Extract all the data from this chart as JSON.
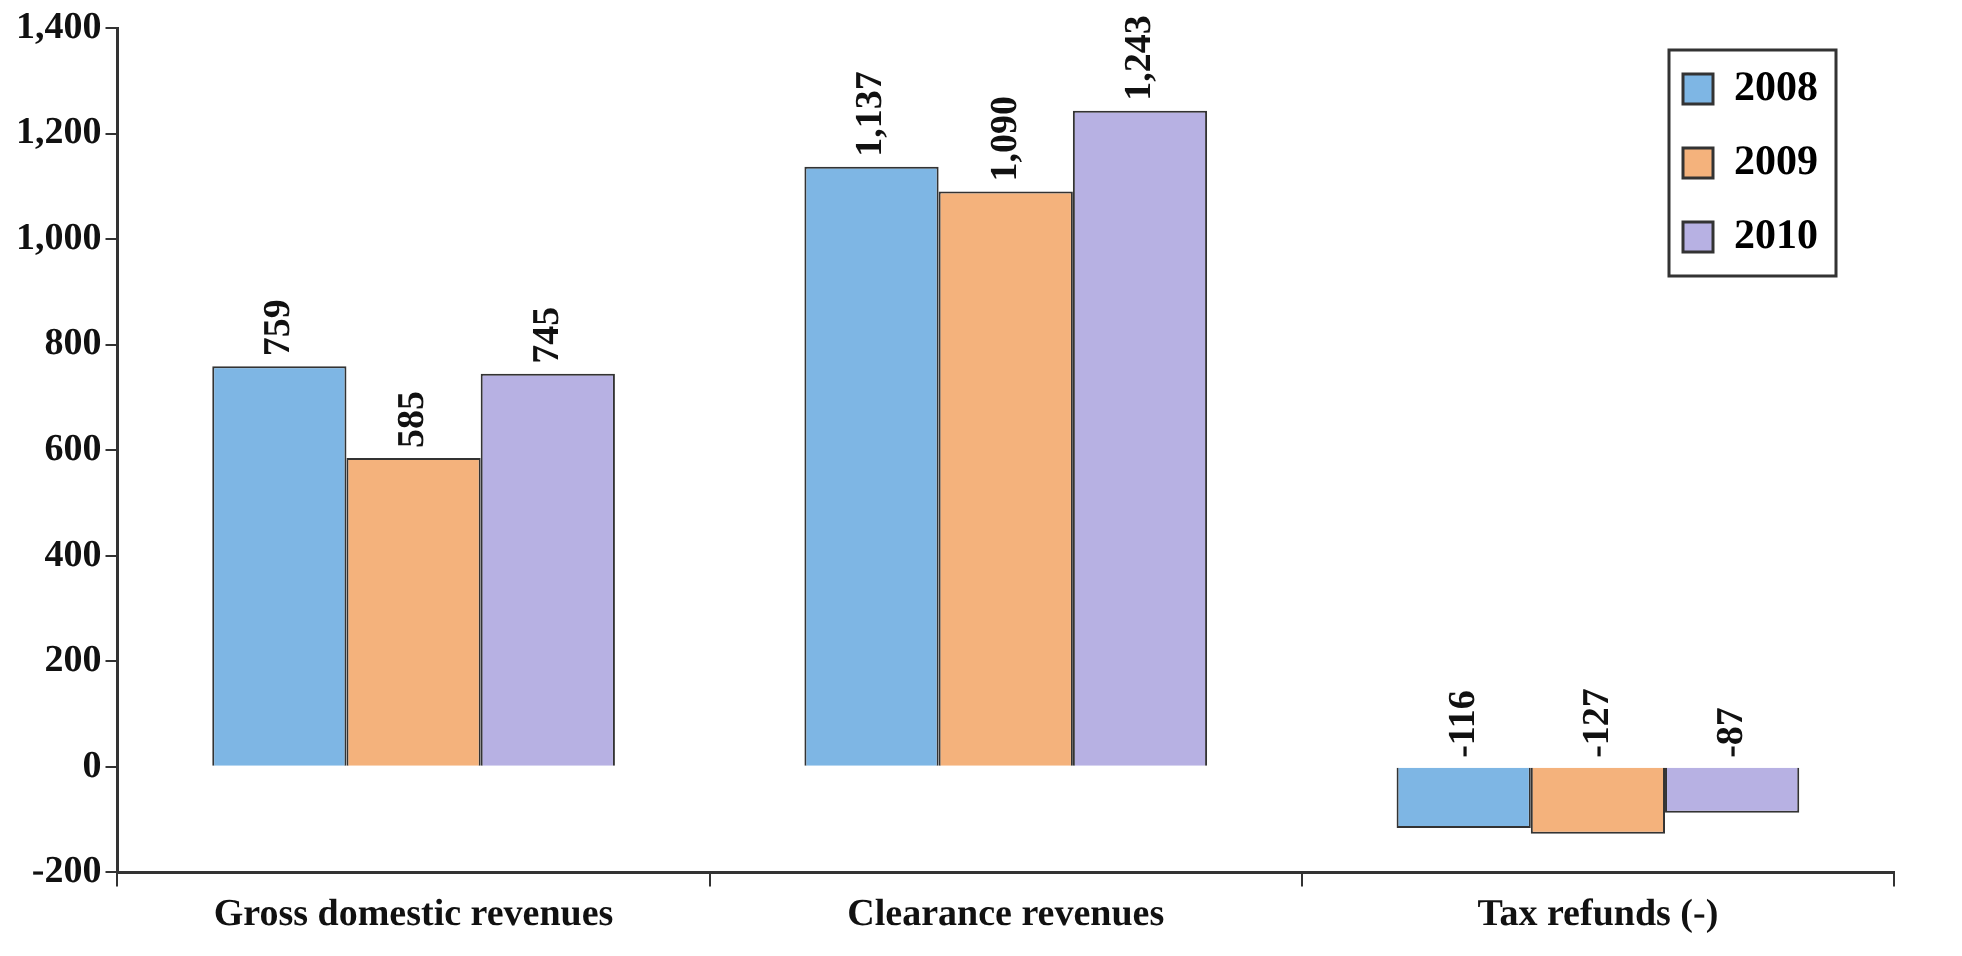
{
  "chart_data": {
    "type": "bar",
    "categories": [
      "Gross domestic revenues",
      "Clearance revenues",
      "Tax refunds (-)"
    ],
    "series": [
      {
        "name": "2008",
        "color": "#7eb6e4",
        "values": [
          759,
          1137,
          -116
        ],
        "value_labels": [
          "759",
          "1,137",
          "-116"
        ]
      },
      {
        "name": "2009",
        "color": "#f4b27c",
        "values": [
          585,
          1090,
          -127
        ],
        "value_labels": [
          "585",
          "1,090",
          "-127"
        ]
      },
      {
        "name": "2010",
        "color": "#b7b1e3",
        "values": [
          745,
          1243,
          -87
        ],
        "value_labels": [
          "745",
          "1,243",
          "-87"
        ]
      }
    ],
    "ylim": [
      -200,
      1400
    ],
    "yticks": [
      -200,
      0,
      200,
      400,
      600,
      800,
      {
        "value": 1000,
        "label": "1,000"
      },
      {
        "value": 1200,
        "label": "1,200"
      },
      {
        "value": 1400,
        "label": "1,400"
      }
    ],
    "grid": false,
    "legend": "top right"
  }
}
